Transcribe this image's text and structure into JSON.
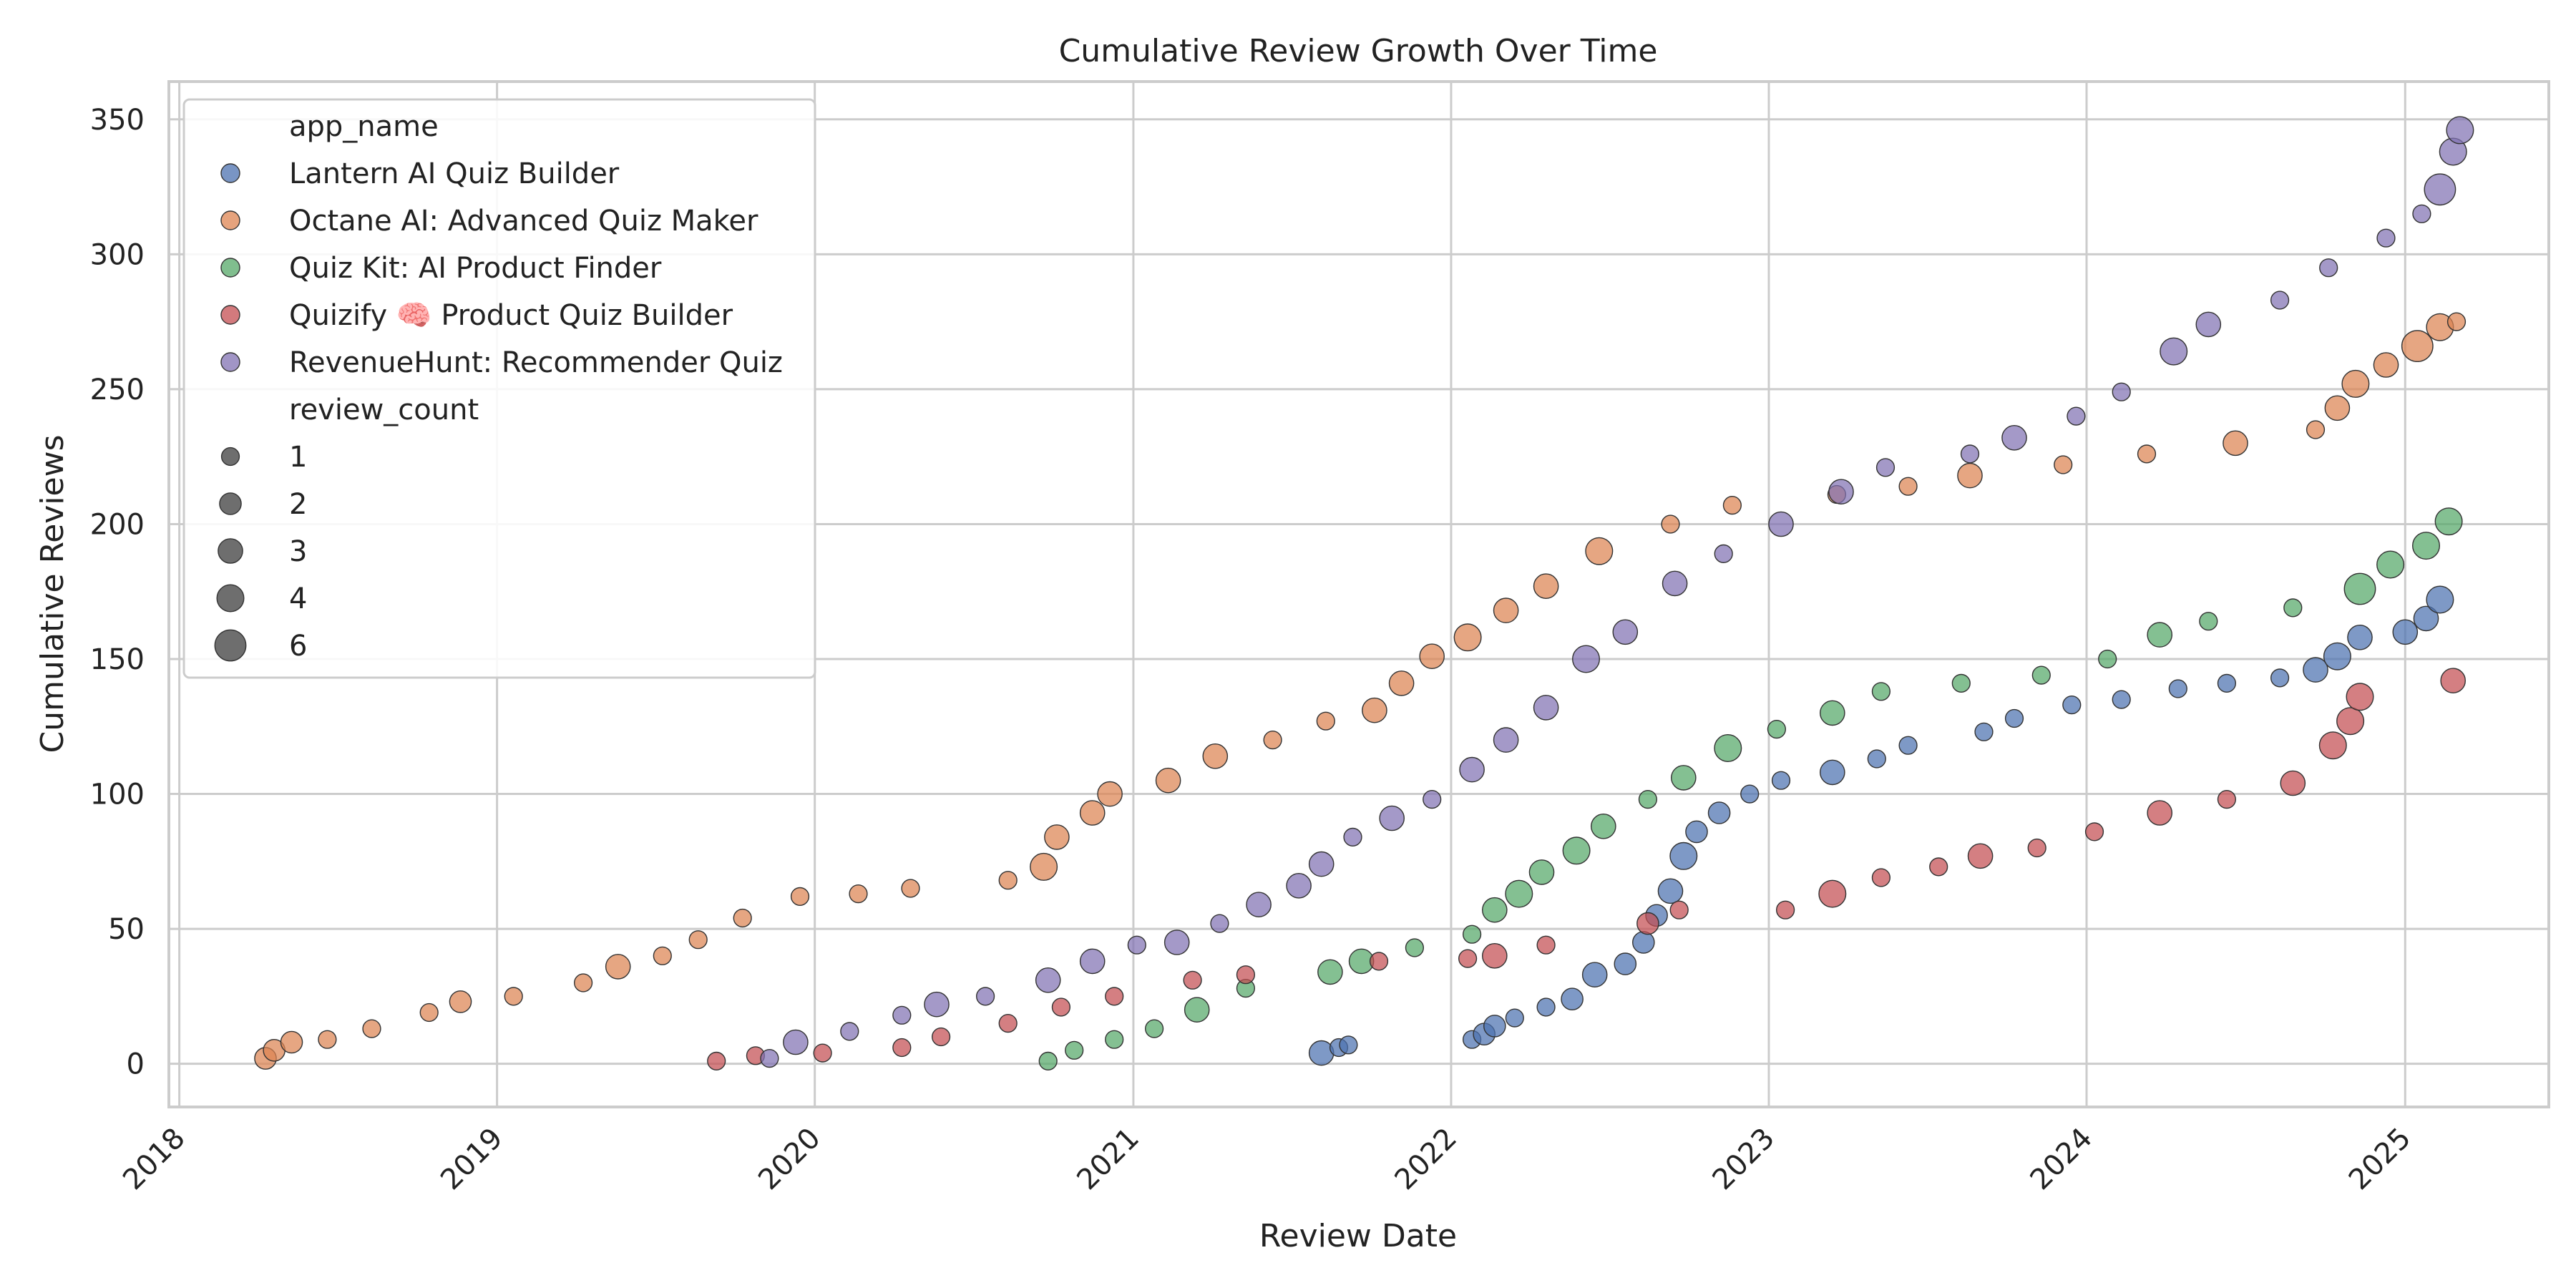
{
  "chart_data": {
    "type": "scatter",
    "title": "Cumulative Review Growth Over Time",
    "xlabel": "Review Date",
    "ylabel": "Cumulative Reviews",
    "x_type": "date",
    "xlim": [
      "2017-12-20",
      "2025-06-15"
    ],
    "ylim": [
      -16,
      364
    ],
    "x_ticks": [
      "2018",
      "2019",
      "2020",
      "2021",
      "2022",
      "2023",
      "2024",
      "2025"
    ],
    "y_ticks": [
      0,
      50,
      100,
      150,
      200,
      250,
      300,
      350
    ],
    "grid": true,
    "legend": {
      "placement": "top-left",
      "hue_title": "app_name",
      "size_title": "review_count",
      "sizes": [
        1,
        2,
        3,
        4,
        6
      ]
    },
    "series": [
      {
        "name": "Lantern AI Quiz Builder",
        "color": "#4C72B0",
        "points": [
          [
            "2021-08-05",
            4,
            3
          ],
          [
            "2021-08-25",
            6,
            1
          ],
          [
            "2021-09-05",
            7,
            1
          ],
          [
            "2022-01-25",
            9,
            1
          ],
          [
            "2022-02-08",
            11,
            2
          ],
          [
            "2022-02-20",
            14,
            2
          ],
          [
            "2022-03-15",
            17,
            1
          ],
          [
            "2022-04-20",
            21,
            1
          ],
          [
            "2022-05-20",
            24,
            2
          ],
          [
            "2022-06-15",
            33,
            3
          ],
          [
            "2022-07-20",
            37,
            2
          ],
          [
            "2022-08-10",
            45,
            2
          ],
          [
            "2022-08-25",
            55,
            2
          ],
          [
            "2022-09-10",
            64,
            3
          ],
          [
            "2022-09-25",
            77,
            4
          ],
          [
            "2022-10-10",
            86,
            2
          ],
          [
            "2022-11-05",
            93,
            2
          ],
          [
            "2022-12-10",
            100,
            1
          ],
          [
            "2023-01-15",
            105,
            1
          ],
          [
            "2023-03-15",
            108,
            3
          ],
          [
            "2023-05-05",
            113,
            1
          ],
          [
            "2023-06-10",
            118,
            1
          ],
          [
            "2023-09-05",
            123,
            1
          ],
          [
            "2023-10-10",
            128,
            1
          ],
          [
            "2023-12-15",
            133,
            1
          ],
          [
            "2024-02-10",
            135,
            1
          ],
          [
            "2024-04-15",
            139,
            1
          ],
          [
            "2024-06-10",
            141,
            1
          ],
          [
            "2024-08-10",
            143,
            1
          ],
          [
            "2024-09-20",
            146,
            3
          ],
          [
            "2024-10-15",
            151,
            4
          ],
          [
            "2024-11-10",
            158,
            3
          ],
          [
            "2025-01-01",
            160,
            3
          ],
          [
            "2025-01-25",
            165,
            3
          ],
          [
            "2025-02-10",
            172,
            4
          ]
        ]
      },
      {
        "name": "Octane AI: Advanced Quiz Maker",
        "color": "#DD8452",
        "points": [
          [
            "2018-04-10",
            2,
            2
          ],
          [
            "2018-04-20",
            5,
            2
          ],
          [
            "2018-05-10",
            8,
            2
          ],
          [
            "2018-06-20",
            9,
            1
          ],
          [
            "2018-08-10",
            13,
            1
          ],
          [
            "2018-10-15",
            19,
            1
          ],
          [
            "2018-11-20",
            23,
            2
          ],
          [
            "2019-01-20",
            25,
            1
          ],
          [
            "2019-04-10",
            30,
            1
          ],
          [
            "2019-05-20",
            36,
            3
          ],
          [
            "2019-07-10",
            40,
            1
          ],
          [
            "2019-08-20",
            46,
            1
          ],
          [
            "2019-10-10",
            54,
            1
          ],
          [
            "2019-12-15",
            62,
            1
          ],
          [
            "2020-02-20",
            63,
            1
          ],
          [
            "2020-04-20",
            65,
            1
          ],
          [
            "2020-08-10",
            68,
            1
          ],
          [
            "2020-09-20",
            73,
            4
          ],
          [
            "2020-10-05",
            84,
            3
          ],
          [
            "2020-11-15",
            93,
            3
          ],
          [
            "2020-12-05",
            100,
            3
          ],
          [
            "2021-02-10",
            105,
            3
          ],
          [
            "2021-04-05",
            114,
            3
          ],
          [
            "2021-06-10",
            120,
            1
          ],
          [
            "2021-08-10",
            127,
            1
          ],
          [
            "2021-10-05",
            131,
            3
          ],
          [
            "2021-11-05",
            141,
            3
          ],
          [
            "2021-12-10",
            151,
            3
          ],
          [
            "2022-01-20",
            158,
            4
          ],
          [
            "2022-03-05",
            168,
            3
          ],
          [
            "2022-04-20",
            177,
            3
          ],
          [
            "2022-06-20",
            190,
            4
          ],
          [
            "2022-09-10",
            200,
            1
          ],
          [
            "2022-11-20",
            207,
            1
          ],
          [
            "2023-03-20",
            211,
            1
          ],
          [
            "2023-06-10",
            214,
            1
          ],
          [
            "2023-08-20",
            218,
            3
          ],
          [
            "2023-12-05",
            222,
            1
          ],
          [
            "2024-03-10",
            226,
            1
          ],
          [
            "2024-06-20",
            230,
            3
          ],
          [
            "2024-09-20",
            235,
            1
          ],
          [
            "2024-10-15",
            243,
            3
          ],
          [
            "2024-11-05",
            252,
            4
          ],
          [
            "2024-12-10",
            259,
            3
          ],
          [
            "2025-01-15",
            266,
            6
          ],
          [
            "2025-02-10",
            273,
            4
          ],
          [
            "2025-03-01",
            275,
            1
          ]
        ]
      },
      {
        "name": "Quiz Kit: AI Product Finder",
        "color": "#55A868",
        "points": [
          [
            "2020-09-25",
            1,
            1
          ],
          [
            "2020-10-25",
            5,
            1
          ],
          [
            "2020-12-10",
            9,
            1
          ],
          [
            "2021-01-25",
            13,
            1
          ],
          [
            "2021-03-15",
            20,
            3
          ],
          [
            "2021-05-10",
            28,
            1
          ],
          [
            "2021-08-15",
            34,
            3
          ],
          [
            "2021-09-20",
            38,
            3
          ],
          [
            "2021-11-20",
            43,
            1
          ],
          [
            "2022-01-25",
            48,
            1
          ],
          [
            "2022-02-20",
            57,
            3
          ],
          [
            "2022-03-20",
            63,
            4
          ],
          [
            "2022-04-15",
            71,
            3
          ],
          [
            "2022-05-25",
            79,
            4
          ],
          [
            "2022-06-25",
            88,
            3
          ],
          [
            "2022-08-15",
            98,
            1
          ],
          [
            "2022-09-25",
            106,
            3
          ],
          [
            "2022-11-15",
            117,
            4
          ],
          [
            "2023-01-10",
            124,
            1
          ],
          [
            "2023-03-15",
            130,
            3
          ],
          [
            "2023-05-10",
            138,
            1
          ],
          [
            "2023-08-10",
            141,
            1
          ],
          [
            "2023-11-10",
            144,
            1
          ],
          [
            "2024-01-25",
            150,
            1
          ],
          [
            "2024-03-25",
            159,
            3
          ],
          [
            "2024-05-20",
            164,
            1
          ],
          [
            "2024-08-25",
            169,
            1
          ],
          [
            "2024-11-10",
            176,
            6
          ],
          [
            "2024-12-15",
            185,
            4
          ],
          [
            "2025-01-25",
            192,
            4
          ],
          [
            "2025-02-20",
            201,
            4
          ]
        ]
      },
      {
        "name": "Quizify 🧠 Product Quiz Builder",
        "color": "#C44E52",
        "points": [
          [
            "2019-09-10",
            1,
            1
          ],
          [
            "2019-10-25",
            3,
            1
          ],
          [
            "2020-01-10",
            4,
            1
          ],
          [
            "2020-04-10",
            6,
            1
          ],
          [
            "2020-05-25",
            10,
            1
          ],
          [
            "2020-08-10",
            15,
            1
          ],
          [
            "2020-10-10",
            21,
            1
          ],
          [
            "2020-12-10",
            25,
            1
          ],
          [
            "2021-03-10",
            31,
            1
          ],
          [
            "2021-05-10",
            33,
            1
          ],
          [
            "2021-10-10",
            38,
            1
          ],
          [
            "2022-01-20",
            39,
            1
          ],
          [
            "2022-02-20",
            40,
            3
          ],
          [
            "2022-04-20",
            44,
            1
          ],
          [
            "2022-08-15",
            52,
            2
          ],
          [
            "2022-09-20",
            57,
            1
          ],
          [
            "2023-01-20",
            57,
            1
          ],
          [
            "2023-03-15",
            63,
            4
          ],
          [
            "2023-05-10",
            69,
            1
          ],
          [
            "2023-07-15",
            73,
            1
          ],
          [
            "2023-09-01",
            77,
            3
          ],
          [
            "2023-11-05",
            80,
            1
          ],
          [
            "2024-01-10",
            86,
            1
          ],
          [
            "2024-03-25",
            93,
            3
          ],
          [
            "2024-06-10",
            98,
            1
          ],
          [
            "2024-08-25",
            104,
            3
          ],
          [
            "2024-10-10",
            118,
            4
          ],
          [
            "2024-10-30",
            127,
            4
          ],
          [
            "2024-11-10",
            136,
            4
          ],
          [
            "2025-02-25",
            142,
            3
          ]
        ]
      },
      {
        "name": "RevenueHunt: Recommender Quiz",
        "color": "#8172B3",
        "points": [
          [
            "2019-11-10",
            2,
            1
          ],
          [
            "2019-12-10",
            8,
            3
          ],
          [
            "2020-02-10",
            12,
            1
          ],
          [
            "2020-04-10",
            18,
            1
          ],
          [
            "2020-05-20",
            22,
            3
          ],
          [
            "2020-07-15",
            25,
            1
          ],
          [
            "2020-09-25",
            31,
            3
          ],
          [
            "2020-11-15",
            38,
            3
          ],
          [
            "2021-01-05",
            44,
            1
          ],
          [
            "2021-02-20",
            45,
            3
          ],
          [
            "2021-04-10",
            52,
            1
          ],
          [
            "2021-05-25",
            59,
            3
          ],
          [
            "2021-07-10",
            66,
            3
          ],
          [
            "2021-08-05",
            74,
            3
          ],
          [
            "2021-09-10",
            84,
            1
          ],
          [
            "2021-10-25",
            91,
            3
          ],
          [
            "2021-12-10",
            98,
            1
          ],
          [
            "2022-01-25",
            109,
            3
          ],
          [
            "2022-03-05",
            120,
            3
          ],
          [
            "2022-04-20",
            132,
            3
          ],
          [
            "2022-06-05",
            150,
            4
          ],
          [
            "2022-07-20",
            160,
            3
          ],
          [
            "2022-09-15",
            178,
            3
          ],
          [
            "2022-11-10",
            189,
            1
          ],
          [
            "2023-01-15",
            200,
            3
          ],
          [
            "2023-03-25",
            212,
            3
          ],
          [
            "2023-05-15",
            221,
            1
          ],
          [
            "2023-08-20",
            226,
            1
          ],
          [
            "2023-10-10",
            232,
            3
          ],
          [
            "2023-12-20",
            240,
            1
          ],
          [
            "2024-02-10",
            249,
            1
          ],
          [
            "2024-04-10",
            264,
            4
          ],
          [
            "2024-05-20",
            274,
            3
          ],
          [
            "2024-08-10",
            283,
            1
          ],
          [
            "2024-10-05",
            295,
            1
          ],
          [
            "2024-12-10",
            306,
            1
          ],
          [
            "2025-01-20",
            315,
            1
          ],
          [
            "2025-02-10",
            324,
            6
          ],
          [
            "2025-02-25",
            338,
            4
          ],
          [
            "2025-03-05",
            346,
            4
          ]
        ]
      }
    ]
  }
}
